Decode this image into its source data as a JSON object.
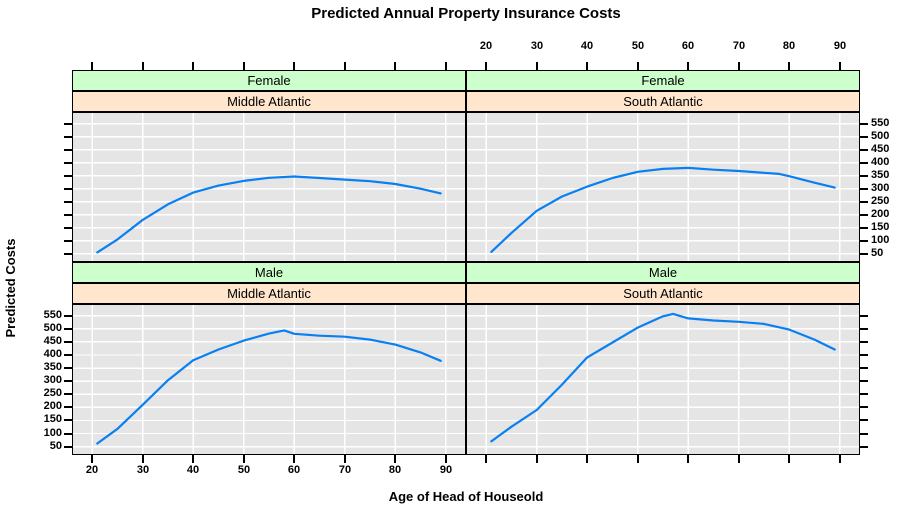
{
  "colors": {
    "strip_sex_bg": "#ccffcc",
    "strip_region_bg": "#ffe6cc",
    "panel_bg": "#e5e5e5",
    "grid": "#ffffff",
    "line": "#0a7ff2",
    "border": "#000000",
    "text": "#000000"
  },
  "chart_data": {
    "type": "line",
    "title": "Predicted Annual Property Insurance Costs",
    "xlabel": "Age of Head of Houseold",
    "ylabel": "Predicted Costs",
    "layout": "2x2 trellis: rows = sex (Female top, Male bottom), columns = region (Middle Atlantic left, South Atlantic right)",
    "grid": true,
    "legend": "none",
    "x_ticks": [
      20,
      30,
      40,
      50,
      60,
      70,
      80,
      90
    ],
    "y_ticks": [
      50,
      100,
      150,
      200,
      250,
      300,
      350,
      400,
      450,
      500,
      550
    ],
    "x_domain": [
      16,
      94
    ],
    "y_domain": [
      18,
      595
    ],
    "panels": [
      {
        "sex": "Female",
        "region": "Middle Atlantic",
        "x": [
          21,
          25,
          30,
          35,
          40,
          45,
          50,
          55,
          60,
          65,
          70,
          75,
          80,
          85,
          89
        ],
        "y": [
          55,
          105,
          180,
          240,
          285,
          312,
          330,
          342,
          347,
          341,
          335,
          329,
          318,
          300,
          282
        ]
      },
      {
        "sex": "Female",
        "region": "South Atlantic",
        "x": [
          21,
          25,
          30,
          35,
          40,
          45,
          50,
          55,
          60,
          65,
          70,
          75,
          78,
          80,
          85,
          89
        ],
        "y": [
          57,
          130,
          215,
          270,
          308,
          341,
          365,
          376,
          380,
          373,
          368,
          361,
          357,
          348,
          323,
          304
        ]
      },
      {
        "sex": "Male",
        "region": "Middle Atlantic",
        "x": [
          21,
          25,
          30,
          35,
          40,
          45,
          50,
          55,
          58,
          60,
          65,
          70,
          75,
          80,
          85,
          89
        ],
        "y": [
          62,
          118,
          210,
          304,
          380,
          421,
          455,
          482,
          494,
          481,
          474,
          470,
          459,
          440,
          410,
          378
        ]
      },
      {
        "sex": "Male",
        "region": "South Atlantic",
        "x": [
          21,
          25,
          30,
          35,
          40,
          45,
          50,
          55,
          57,
          60,
          65,
          70,
          75,
          80,
          85,
          89
        ],
        "y": [
          70,
          126,
          190,
          287,
          391,
          448,
          505,
          548,
          557,
          540,
          532,
          527,
          519,
          497,
          459,
          421
        ]
      }
    ]
  }
}
